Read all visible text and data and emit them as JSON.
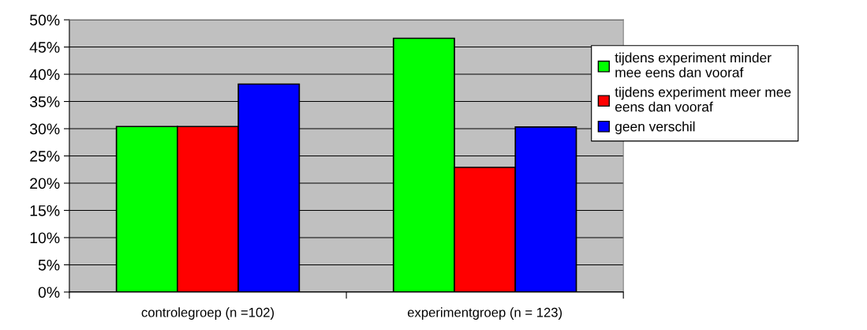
{
  "chart_data": {
    "type": "bar",
    "categories": [
      "controlegroep (n =102)",
      "experimentgroep (n = 123)"
    ],
    "series": [
      {
        "name": "tijdens experiment minder\nmee eens dan vooraf",
        "color": "#00ff00",
        "values": [
          30.4,
          46.6
        ]
      },
      {
        "name": "tijdens experiment meer mee\neens dan vooraf",
        "color": "#ff0000",
        "values": [
          30.4,
          22.9
        ]
      },
      {
        "name": "geen verschil",
        "color": "#0000ff",
        "values": [
          38.2,
          30.3
        ]
      }
    ],
    "ylim": [
      0,
      50
    ],
    "yticks": [
      {
        "value": 0,
        "label": "0%"
      },
      {
        "value": 5,
        "label": "5%"
      },
      {
        "value": 10,
        "label": "10%"
      },
      {
        "value": 15,
        "label": "15%"
      },
      {
        "value": 20,
        "label": "20%"
      },
      {
        "value": 25,
        "label": "25%"
      },
      {
        "value": 30,
        "label": "30%"
      },
      {
        "value": 35,
        "label": "35%"
      },
      {
        "value": 40,
        "label": "40%"
      },
      {
        "value": 45,
        "label": "45%"
      },
      {
        "value": 50,
        "label": "50%"
      }
    ],
    "grid": "y",
    "legend": "right"
  }
}
